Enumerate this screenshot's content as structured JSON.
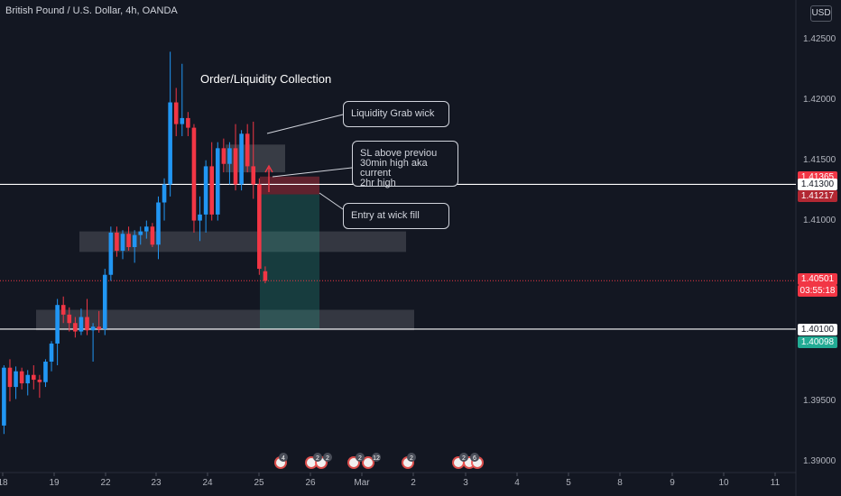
{
  "header": {
    "symbol_title": "British Pound / U.S. Dollar, 4h, OANDA",
    "currency_button": "USD"
  },
  "chart_data": {
    "type": "candlestick",
    "symbol": "British Pound / U.S. Dollar",
    "interval": "4h",
    "exchange": "OANDA",
    "ylim": [
      1.3888,
      1.4276
    ],
    "y_ticks": [
      "1.42500",
      "1.42000",
      "1.41500",
      "1.41000",
      "1.40500",
      "1.40000",
      "1.39500",
      "1.39000"
    ],
    "x_ticks": [
      "18",
      "19",
      "22",
      "23",
      "24",
      "25",
      "26",
      "Mar",
      "2",
      "3",
      "4",
      "5",
      "8",
      "9",
      "10",
      "11"
    ],
    "price_tags": [
      {
        "label": "1.41365",
        "color": "#f23645"
      },
      {
        "label": "1.41300",
        "color": "#ffffff"
      },
      {
        "label": "1.41217",
        "color": "#b22833"
      },
      {
        "label": "1.40501",
        "color": "#f23645"
      },
      {
        "label": "03:55:18",
        "color": "#f23645"
      },
      {
        "label": "1.40100",
        "color": "#ffffff"
      },
      {
        "label": "1.40098",
        "color": "#22ab94"
      }
    ],
    "horizontal_lines": [
      1.413,
      1.401
    ],
    "last_price": 1.40501,
    "candles": [
      {
        "o": 1.393,
        "h": 1.398,
        "l": 1.3923,
        "c": 1.3978
      },
      {
        "o": 1.3978,
        "h": 1.3985,
        "l": 1.395,
        "c": 1.3962
      },
      {
        "o": 1.3962,
        "h": 1.3979,
        "l": 1.3952,
        "c": 1.3975
      },
      {
        "o": 1.3975,
        "h": 1.3978,
        "l": 1.396,
        "c": 1.3965
      },
      {
        "o": 1.3965,
        "h": 1.3976,
        "l": 1.3955,
        "c": 1.3972
      },
      {
        "o": 1.3972,
        "h": 1.398,
        "l": 1.396,
        "c": 1.3968
      },
      {
        "o": 1.3968,
        "h": 1.3972,
        "l": 1.3953,
        "c": 1.3966
      },
      {
        "o": 1.3966,
        "h": 1.3985,
        "l": 1.3962,
        "c": 1.3983
      },
      {
        "o": 1.3983,
        "h": 1.4,
        "l": 1.3975,
        "c": 1.3998
      },
      {
        "o": 1.3998,
        "h": 1.4035,
        "l": 1.398,
        "c": 1.403
      },
      {
        "o": 1.403,
        "h": 1.4037,
        "l": 1.4015,
        "c": 1.4022
      },
      {
        "o": 1.4022,
        "h": 1.4028,
        "l": 1.4008,
        "c": 1.4015
      },
      {
        "o": 1.4015,
        "h": 1.402,
        "l": 1.4003,
        "c": 1.4008
      },
      {
        "o": 1.4008,
        "h": 1.4027,
        "l": 1.4005,
        "c": 1.402
      },
      {
        "o": 1.402,
        "h": 1.4035,
        "l": 1.4005,
        "c": 1.4009
      },
      {
        "o": 1.4009,
        "h": 1.4015,
        "l": 1.3983,
        "c": 1.4012
      },
      {
        "o": 1.4012,
        "h": 1.4025,
        "l": 1.4007,
        "c": 1.401
      },
      {
        "o": 1.401,
        "h": 1.406,
        "l": 1.4005,
        "c": 1.4055
      },
      {
        "o": 1.4055,
        "h": 1.4095,
        "l": 1.405,
        "c": 1.409
      },
      {
        "o": 1.409,
        "h": 1.4095,
        "l": 1.407,
        "c": 1.4075
      },
      {
        "o": 1.4075,
        "h": 1.4092,
        "l": 1.4068,
        "c": 1.4089
      },
      {
        "o": 1.4089,
        "h": 1.4095,
        "l": 1.4075,
        "c": 1.4078
      },
      {
        "o": 1.4078,
        "h": 1.4092,
        "l": 1.4065,
        "c": 1.4088
      },
      {
        "o": 1.4088,
        "h": 1.4095,
        "l": 1.408,
        "c": 1.4091
      },
      {
        "o": 1.4091,
        "h": 1.41,
        "l": 1.4085,
        "c": 1.4095
      },
      {
        "o": 1.4095,
        "h": 1.4098,
        "l": 1.4078,
        "c": 1.408
      },
      {
        "o": 1.408,
        "h": 1.412,
        "l": 1.4068,
        "c": 1.4115
      },
      {
        "o": 1.4115,
        "h": 1.4135,
        "l": 1.41,
        "c": 1.413
      },
      {
        "o": 1.413,
        "h": 1.424,
        "l": 1.412,
        "c": 1.4198
      },
      {
        "o": 1.4198,
        "h": 1.421,
        "l": 1.417,
        "c": 1.418
      },
      {
        "o": 1.418,
        "h": 1.423,
        "l": 1.417,
        "c": 1.4185
      },
      {
        "o": 1.4185,
        "h": 1.419,
        "l": 1.417,
        "c": 1.4177
      },
      {
        "o": 1.4177,
        "h": 1.418,
        "l": 1.409,
        "c": 1.41
      },
      {
        "o": 1.41,
        "h": 1.412,
        "l": 1.4083,
        "c": 1.4105
      },
      {
        "o": 1.4105,
        "h": 1.415,
        "l": 1.409,
        "c": 1.4145
      },
      {
        "o": 1.4145,
        "h": 1.4165,
        "l": 1.41,
        "c": 1.4105
      },
      {
        "o": 1.4105,
        "h": 1.4165,
        "l": 1.41,
        "c": 1.416
      },
      {
        "o": 1.416,
        "h": 1.4168,
        "l": 1.414,
        "c": 1.4147
      },
      {
        "o": 1.4147,
        "h": 1.4165,
        "l": 1.413,
        "c": 1.416
      },
      {
        "o": 1.416,
        "h": 1.418,
        "l": 1.4125,
        "c": 1.413
      },
      {
        "o": 1.413,
        "h": 1.4175,
        "l": 1.4125,
        "c": 1.4172
      },
      {
        "o": 1.4172,
        "h": 1.418,
        "l": 1.414,
        "c": 1.4145
      },
      {
        "o": 1.4145,
        "h": 1.4182,
        "l": 1.4118,
        "c": 1.413
      },
      {
        "o": 1.413,
        "h": 1.4135,
        "l": 1.4055,
        "c": 1.406
      },
      {
        "o": 1.4058,
        "h": 1.4062,
        "l": 1.4048,
        "c": 1.405
      }
    ]
  },
  "annotations": {
    "headline": "Order/Liquidity Collection",
    "liquidity_grab": "Liquidity Grab wick",
    "sl_note": "SL above previou\n30min high aka current\n2hr high",
    "entry_note": "Entry at wick fill"
  },
  "events": {
    "counts": [
      "4",
      "2",
      "2",
      "2",
      "12",
      "2",
      "2",
      "6"
    ]
  }
}
